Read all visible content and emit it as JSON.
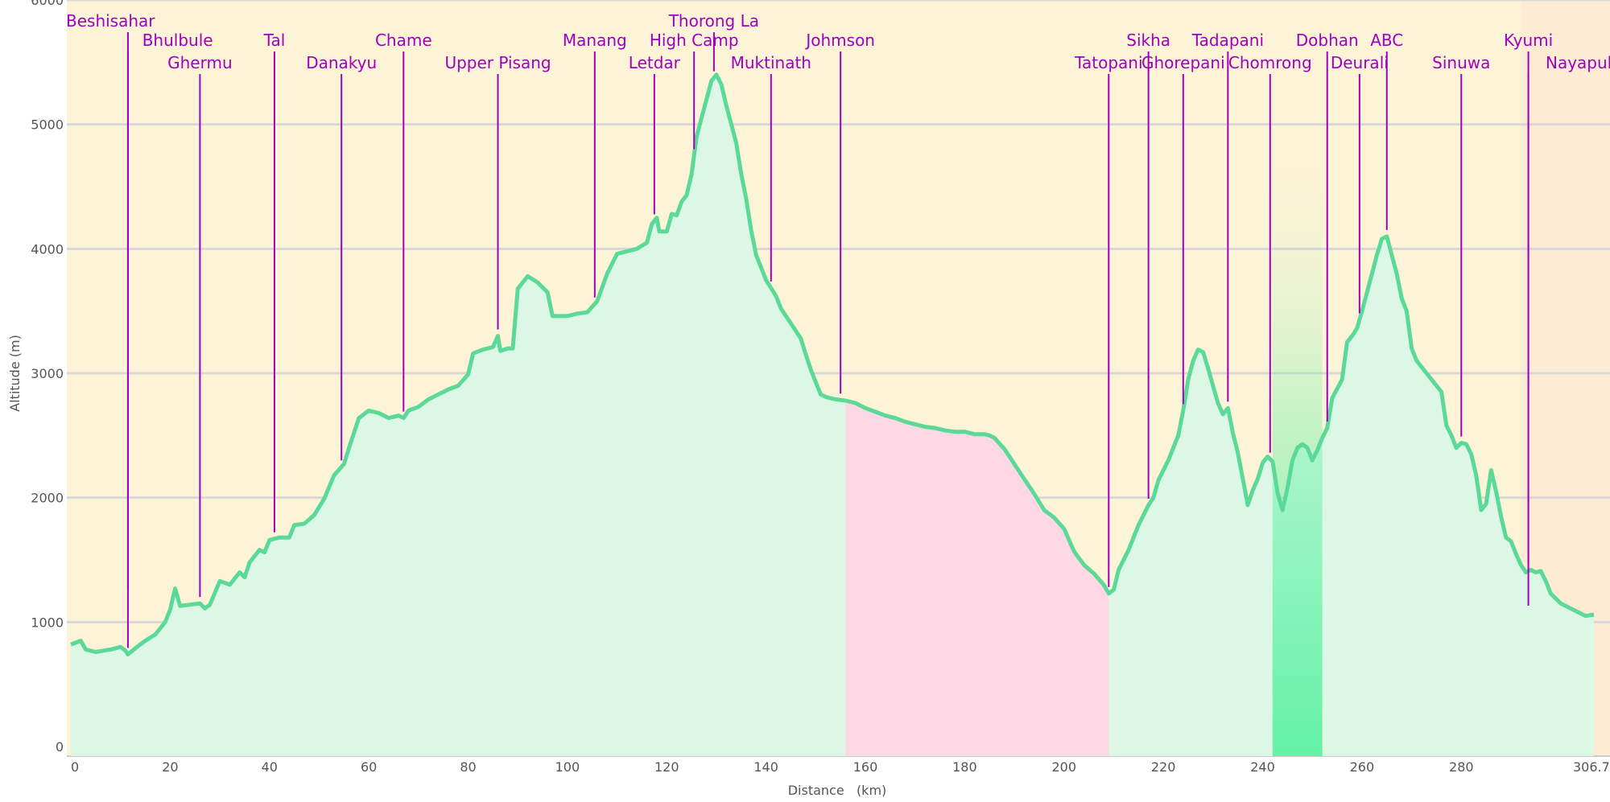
{
  "chart_data": {
    "type": "area",
    "title": "",
    "xlabel": "Distance   (km)",
    "ylabel": "Altitude (m)",
    "xlim": [
      0,
      306.7
    ],
    "ylim": [
      0,
      6000
    ],
    "x_ticks": [
      {
        "value": 0,
        "label": "0"
      },
      {
        "value": 20,
        "label": "20"
      },
      {
        "value": 40,
        "label": "40"
      },
      {
        "value": 60,
        "label": "60"
      },
      {
        "value": 80,
        "label": "80"
      },
      {
        "value": 100,
        "label": "100"
      },
      {
        "value": 120,
        "label": "120"
      },
      {
        "value": 140,
        "label": "140"
      },
      {
        "value": 160,
        "label": "160"
      },
      {
        "value": 180,
        "label": "180"
      },
      {
        "value": 200,
        "label": "200"
      },
      {
        "value": 220,
        "label": "220"
      },
      {
        "value": 240,
        "label": "240"
      },
      {
        "value": 260,
        "label": "260"
      },
      {
        "value": 280,
        "label": "280"
      },
      {
        "value": 306.7,
        "label": "306.7"
      }
    ],
    "y_ticks": [
      {
        "value": 0,
        "label": "0"
      },
      {
        "value": 1000,
        "label": "1000"
      },
      {
        "value": 2000,
        "label": "2000"
      },
      {
        "value": 3000,
        "label": "3000"
      },
      {
        "value": 4000,
        "label": "4000"
      },
      {
        "value": 5000,
        "label": "5000"
      },
      {
        "value": 6000,
        "label": "6000"
      }
    ],
    "grid": true,
    "colors": {
      "background": "#fdf3d7",
      "grid": "#d8d8d8",
      "area_fill": "#dcf7e6",
      "line": "#5bd999",
      "label": "#a000c0",
      "pink_band": "#fed8e4",
      "green_band": "#63f2a6",
      "axis_text": "#555555"
    },
    "bands": [
      {
        "x0": 156,
        "x1": 209,
        "type": "pink"
      },
      {
        "x0": 242,
        "x1": 252,
        "type": "green"
      }
    ],
    "profile": [
      [
        0,
        820
      ],
      [
        2,
        850
      ],
      [
        3,
        780
      ],
      [
        5,
        760
      ],
      [
        8,
        780
      ],
      [
        10,
        800
      ],
      [
        11,
        770
      ],
      [
        11.5,
        740
      ],
      [
        13,
        790
      ],
      [
        15,
        850
      ],
      [
        17,
        900
      ],
      [
        19,
        1000
      ],
      [
        20,
        1100
      ],
      [
        21,
        1270
      ],
      [
        22,
        1130
      ],
      [
        24,
        1140
      ],
      [
        26,
        1150
      ],
      [
        27,
        1110
      ],
      [
        28,
        1140
      ],
      [
        30,
        1330
      ],
      [
        32,
        1300
      ],
      [
        34,
        1400
      ],
      [
        35,
        1360
      ],
      [
        36,
        1480
      ],
      [
        38,
        1580
      ],
      [
        39,
        1560
      ],
      [
        40,
        1660
      ],
      [
        42,
        1680
      ],
      [
        44,
        1680
      ],
      [
        45,
        1780
      ],
      [
        47,
        1790
      ],
      [
        49,
        1860
      ],
      [
        51,
        1990
      ],
      [
        53,
        2180
      ],
      [
        55,
        2270
      ],
      [
        56,
        2400
      ],
      [
        58,
        2640
      ],
      [
        60,
        2700
      ],
      [
        62,
        2680
      ],
      [
        64,
        2640
      ],
      [
        66,
        2660
      ],
      [
        67,
        2640
      ],
      [
        68,
        2700
      ],
      [
        70,
        2730
      ],
      [
        72,
        2790
      ],
      [
        74,
        2830
      ],
      [
        76,
        2870
      ],
      [
        78,
        2900
      ],
      [
        80,
        2990
      ],
      [
        81,
        3160
      ],
      [
        83,
        3190
      ],
      [
        85,
        3210
      ],
      [
        86,
        3300
      ],
      [
        86.5,
        3180
      ],
      [
        88,
        3200
      ],
      [
        89,
        3200
      ],
      [
        90,
        3680
      ],
      [
        92,
        3780
      ],
      [
        94,
        3730
      ],
      [
        96,
        3650
      ],
      [
        97,
        3460
      ],
      [
        100,
        3460
      ],
      [
        102,
        3480
      ],
      [
        104,
        3490
      ],
      [
        106,
        3580
      ],
      [
        108,
        3800
      ],
      [
        110,
        3960
      ],
      [
        112,
        3980
      ],
      [
        114,
        4000
      ],
      [
        116,
        4050
      ],
      [
        117,
        4200
      ],
      [
        118,
        4250
      ],
      [
        118.5,
        4140
      ],
      [
        120,
        4140
      ],
      [
        121,
        4280
      ],
      [
        122,
        4270
      ],
      [
        123,
        4380
      ],
      [
        124,
        4430
      ],
      [
        125,
        4600
      ],
      [
        126,
        4900
      ],
      [
        127,
        5050
      ],
      [
        128,
        5200
      ],
      [
        129,
        5350
      ],
      [
        130,
        5400
      ],
      [
        131,
        5320
      ],
      [
        132,
        5150
      ],
      [
        133,
        5000
      ],
      [
        134,
        4850
      ],
      [
        135,
        4600
      ],
      [
        136,
        4400
      ],
      [
        137,
        4150
      ],
      [
        138,
        3950
      ],
      [
        140,
        3750
      ],
      [
        142,
        3620
      ],
      [
        143,
        3520
      ],
      [
        145,
        3400
      ],
      [
        147,
        3280
      ],
      [
        148,
        3150
      ],
      [
        149,
        3030
      ],
      [
        150,
        2930
      ],
      [
        151,
        2830
      ],
      [
        152,
        2810
      ],
      [
        154,
        2790
      ],
      [
        156,
        2780
      ],
      [
        158,
        2760
      ],
      [
        160,
        2720
      ],
      [
        162,
        2690
      ],
      [
        164,
        2660
      ],
      [
        166,
        2640
      ],
      [
        168,
        2610
      ],
      [
        170,
        2590
      ],
      [
        172,
        2570
      ],
      [
        174,
        2560
      ],
      [
        176,
        2540
      ],
      [
        178,
        2530
      ],
      [
        180,
        2530
      ],
      [
        182,
        2510
      ],
      [
        184,
        2510
      ],
      [
        185,
        2500
      ],
      [
        186,
        2480
      ],
      [
        188,
        2390
      ],
      [
        190,
        2270
      ],
      [
        192,
        2150
      ],
      [
        194,
        2030
      ],
      [
        196,
        1900
      ],
      [
        198,
        1840
      ],
      [
        200,
        1750
      ],
      [
        202,
        1570
      ],
      [
        204,
        1460
      ],
      [
        206,
        1390
      ],
      [
        208,
        1300
      ],
      [
        209,
        1230
      ],
      [
        210,
        1260
      ],
      [
        211,
        1420
      ],
      [
        213,
        1580
      ],
      [
        215,
        1780
      ],
      [
        217,
        1940
      ],
      [
        218,
        2000
      ],
      [
        219,
        2140
      ],
      [
        221,
        2300
      ],
      [
        223,
        2500
      ],
      [
        224,
        2700
      ],
      [
        225,
        2950
      ],
      [
        226,
        3100
      ],
      [
        227,
        3190
      ],
      [
        228,
        3170
      ],
      [
        229,
        3040
      ],
      [
        230,
        2900
      ],
      [
        231,
        2760
      ],
      [
        232,
        2670
      ],
      [
        233,
        2720
      ],
      [
        234,
        2520
      ],
      [
        235,
        2360
      ],
      [
        236,
        2150
      ],
      [
        237,
        1940
      ],
      [
        238,
        2060
      ],
      [
        239,
        2150
      ],
      [
        240,
        2280
      ],
      [
        241,
        2330
      ],
      [
        242,
        2290
      ],
      [
        243,
        2040
      ],
      [
        244,
        1900
      ],
      [
        245,
        2080
      ],
      [
        246,
        2300
      ],
      [
        247,
        2400
      ],
      [
        248,
        2430
      ],
      [
        249,
        2400
      ],
      [
        250,
        2300
      ],
      [
        251,
        2380
      ],
      [
        252,
        2480
      ],
      [
        253,
        2560
      ],
      [
        254,
        2800
      ],
      [
        256,
        2950
      ],
      [
        257,
        3250
      ],
      [
        258,
        3300
      ],
      [
        259,
        3360
      ],
      [
        260,
        3500
      ],
      [
        261,
        3650
      ],
      [
        262,
        3800
      ],
      [
        263,
        3950
      ],
      [
        264,
        4080
      ],
      [
        265,
        4100
      ],
      [
        266,
        3950
      ],
      [
        267,
        3800
      ],
      [
        268,
        3600
      ],
      [
        269,
        3500
      ],
      [
        270,
        3200
      ],
      [
        271,
        3100
      ],
      [
        276,
        2850
      ],
      [
        277,
        2580
      ],
      [
        278,
        2500
      ],
      [
        279,
        2400
      ],
      [
        280,
        2440
      ],
      [
        281,
        2430
      ],
      [
        282,
        2350
      ],
      [
        283,
        2180
      ],
      [
        284,
        1900
      ],
      [
        285,
        1950
      ],
      [
        286,
        2220
      ],
      [
        287,
        2050
      ],
      [
        288,
        1850
      ],
      [
        289,
        1680
      ],
      [
        290,
        1650
      ],
      [
        291,
        1550
      ],
      [
        292,
        1460
      ],
      [
        293,
        1400
      ],
      [
        294,
        1420
      ],
      [
        295,
        1400
      ],
      [
        296,
        1410
      ],
      [
        297,
        1330
      ],
      [
        298,
        1230
      ],
      [
        300,
        1150
      ],
      [
        302,
        1110
      ],
      [
        304,
        1070
      ],
      [
        305,
        1050
      ],
      [
        306.7,
        1060
      ]
    ],
    "annotations": [
      {
        "label": "Beshisahar",
        "x": 11.5,
        "anchor": 11.5,
        "row": 0
      },
      {
        "label": "Bhulbule",
        "x": 11.5,
        "anchor": 21.5,
        "row": 1
      },
      {
        "label": "Ghermu",
        "x": 26,
        "anchor": 26,
        "row": 2
      },
      {
        "label": "Tal",
        "x": 41,
        "anchor": 41,
        "row": 1
      },
      {
        "label": "Danakyu",
        "x": 54.5,
        "anchor": 54.5,
        "row": 2
      },
      {
        "label": "Chame",
        "x": 67,
        "anchor": 67,
        "row": 1
      },
      {
        "label": "Upper Pisang",
        "x": 86,
        "anchor": 86,
        "row": 2
      },
      {
        "label": "Manang",
        "x": 105.5,
        "anchor": 105.5,
        "row": 1
      },
      {
        "label": "Letdar",
        "x": 117.5,
        "anchor": 117.5,
        "row": 2
      },
      {
        "label": "High Camp",
        "x": 125.5,
        "anchor": 125.5,
        "row": 1
      },
      {
        "label": "Thorong La",
        "x": 129.5,
        "anchor": 129.5,
        "row": 0
      },
      {
        "label": "Muktinath",
        "x": 141,
        "anchor": 141,
        "row": 2
      },
      {
        "label": "Johmson",
        "x": 155,
        "anchor": 155,
        "row": 1
      },
      {
        "label": "Tatopani",
        "x": 209,
        "anchor": 209,
        "row": 2
      },
      {
        "label": "Sikha",
        "x": 217,
        "anchor": 217,
        "row": 1
      },
      {
        "label": "Ghorepani",
        "x": 224,
        "anchor": 224,
        "row": 2
      },
      {
        "label": "Tadapani",
        "x": 233,
        "anchor": 233,
        "row": 1
      },
      {
        "label": "Chomrong",
        "x": 241.5,
        "anchor": 241.5,
        "row": 2
      },
      {
        "label": "Dobhan",
        "x": 253,
        "anchor": 253,
        "row": 1
      },
      {
        "label": "Deurali",
        "x": 259.5,
        "anchor": 259.5,
        "row": 2
      },
      {
        "label": "ABC",
        "x": 265,
        "anchor": 265,
        "row": 1
      },
      {
        "label": "Sinuwa",
        "x": 280,
        "anchor": 280,
        "row": 2
      },
      {
        "label": "Kyumi",
        "x": 293.5,
        "anchor": 293.5,
        "row": 1
      },
      {
        "label": "Nayapul",
        "x": 293.5,
        "anchor": 303.5,
        "row": 2
      }
    ]
  }
}
